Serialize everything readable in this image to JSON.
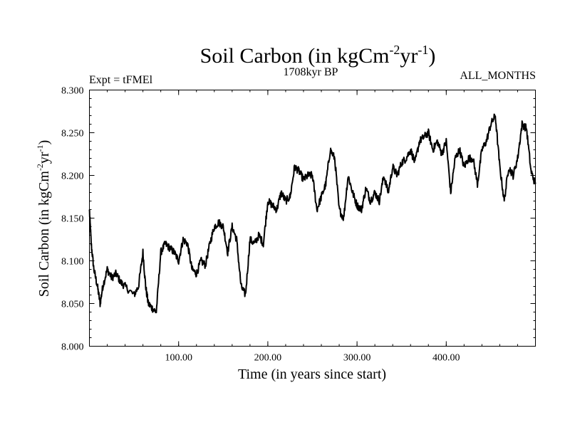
{
  "chart_data": {
    "type": "line",
    "title": "Soil Carbon (in kgCm",
    "title_sup1": "-2",
    "title_mid": "yr",
    "title_sup2": "-1",
    "title_end": ")",
    "subtitle_left": "Expt = tFMEl",
    "subtitle_center": "1708kyr BP",
    "subtitle_right": "ALL_MONTHS",
    "xlabel": "Time (in years since start)",
    "ylabel": "Soil Carbon (in kgCm",
    "ylabel_sup1": "-2",
    "ylabel_mid": "yr",
    "ylabel_sup2": "-1",
    "ylabel_end": ")",
    "xlim": [
      0,
      500
    ],
    "ylim": [
      8.0,
      8.3
    ],
    "x_ticks": [
      100,
      200,
      300,
      400
    ],
    "x_tick_labels": [
      "100.00",
      "200.00",
      "300.00",
      "400.00"
    ],
    "y_ticks": [
      8.0,
      8.05,
      8.1,
      8.15,
      8.2,
      8.25,
      8.3
    ],
    "y_tick_labels": [
      "8.000",
      "8.050",
      "8.100",
      "8.150",
      "8.200",
      "8.250",
      "8.300"
    ],
    "line_color": "#000000",
    "series": [
      {
        "name": "Soil Carbon",
        "x": [
          0,
          2,
          5,
          9,
          12,
          15,
          20,
          25,
          30,
          35,
          40,
          50,
          55,
          60,
          63,
          66,
          70,
          75,
          80,
          85,
          90,
          95,
          100,
          105,
          110,
          115,
          120,
          125,
          130,
          135,
          140,
          145,
          150,
          155,
          160,
          165,
          170,
          175,
          180,
          185,
          190,
          195,
          200,
          205,
          210,
          215,
          220,
          225,
          230,
          235,
          240,
          245,
          250,
          255,
          260,
          265,
          270,
          275,
          280,
          285,
          290,
          295,
          300,
          305,
          310,
          315,
          320,
          325,
          330,
          335,
          340,
          345,
          350,
          355,
          360,
          365,
          370,
          375,
          380,
          385,
          390,
          395,
          400,
          405,
          410,
          415,
          420,
          425,
          430,
          435,
          440,
          445,
          450,
          455,
          460,
          465,
          470,
          475,
          480,
          485,
          490,
          495,
          500
        ],
        "y": [
          8.16,
          8.12,
          8.09,
          8.07,
          8.05,
          8.07,
          8.09,
          8.08,
          8.085,
          8.075,
          8.07,
          8.06,
          8.07,
          8.11,
          8.07,
          8.05,
          8.045,
          8.04,
          8.11,
          8.12,
          8.115,
          8.11,
          8.1,
          8.125,
          8.12,
          8.09,
          8.085,
          8.1,
          8.095,
          8.12,
          8.14,
          8.145,
          8.14,
          8.11,
          8.14,
          8.125,
          8.07,
          8.06,
          8.125,
          8.12,
          8.13,
          8.12,
          8.17,
          8.165,
          8.16,
          8.18,
          8.17,
          8.175,
          8.21,
          8.205,
          8.195,
          8.2,
          8.2,
          8.16,
          8.175,
          8.19,
          8.23,
          8.22,
          8.16,
          8.15,
          8.2,
          8.18,
          8.165,
          8.16,
          8.185,
          8.17,
          8.18,
          8.17,
          8.2,
          8.18,
          8.21,
          8.2,
          8.215,
          8.22,
          8.23,
          8.215,
          8.24,
          8.245,
          8.25,
          8.23,
          8.24,
          8.225,
          8.24,
          8.18,
          8.22,
          8.23,
          8.21,
          8.22,
          8.22,
          8.19,
          8.23,
          8.24,
          8.26,
          8.27,
          8.21,
          8.17,
          8.21,
          8.2,
          8.22,
          8.26,
          8.255,
          8.205,
          8.19
        ]
      }
    ]
  }
}
